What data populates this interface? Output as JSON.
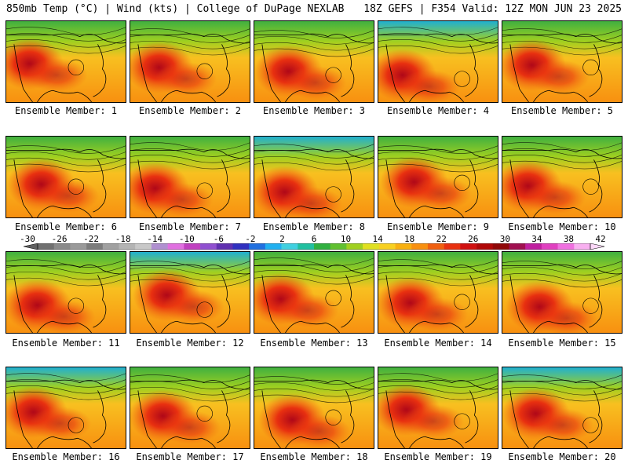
{
  "header": {
    "left": "850mb Temp (°C) | Wind (kts) | College of DuPage NEXLAB",
    "right": "18Z GEFS | F354 Valid: 12Z MON JUN 23 2025"
  },
  "members": [
    "Ensemble Member: 1",
    "Ensemble Member: 2",
    "Ensemble Member: 3",
    "Ensemble Member: 4",
    "Ensemble Member: 5",
    "Ensemble Member: 6",
    "Ensemble Member: 7",
    "Ensemble Member: 8",
    "Ensemble Member: 9",
    "Ensemble Member: 10",
    "Ensemble Member: 11",
    "Ensemble Member: 12",
    "Ensemble Member: 13",
    "Ensemble Member: 14",
    "Ensemble Member: 15",
    "Ensemble Member: 16",
    "Ensemble Member: 17",
    "Ensemble Member: 18",
    "Ensemble Member: 19",
    "Ensemble Member: 20"
  ],
  "colorbar": {
    "ticks": [
      "-30",
      "-26",
      "-22",
      "-18",
      "-14",
      "-10",
      "-6",
      "-2",
      "2",
      "6",
      "10",
      "14",
      "18",
      "22",
      "26",
      "30",
      "34",
      "38",
      "42"
    ],
    "colors": [
      "#707070",
      "#8a8a8a",
      "#9a9a9a",
      "#7c7c7c",
      "#a0a0a0",
      "#b4b4b4",
      "#c8c8c8",
      "#b090d0",
      "#e070e0",
      "#c040c0",
      "#9050d0",
      "#6030b0",
      "#3030c0",
      "#2070e0",
      "#20b0f0",
      "#40d0e0",
      "#20c0a0",
      "#30b040",
      "#60c030",
      "#a0d020",
      "#e0e020",
      "#f8d020",
      "#f8b010",
      "#f89010",
      "#f06010",
      "#e83010",
      "#d01010",
      "#b00808",
      "#900808",
      "#a01050",
      "#c020a0",
      "#e040c0",
      "#f070e0",
      "#f8b0f0"
    ]
  }
}
